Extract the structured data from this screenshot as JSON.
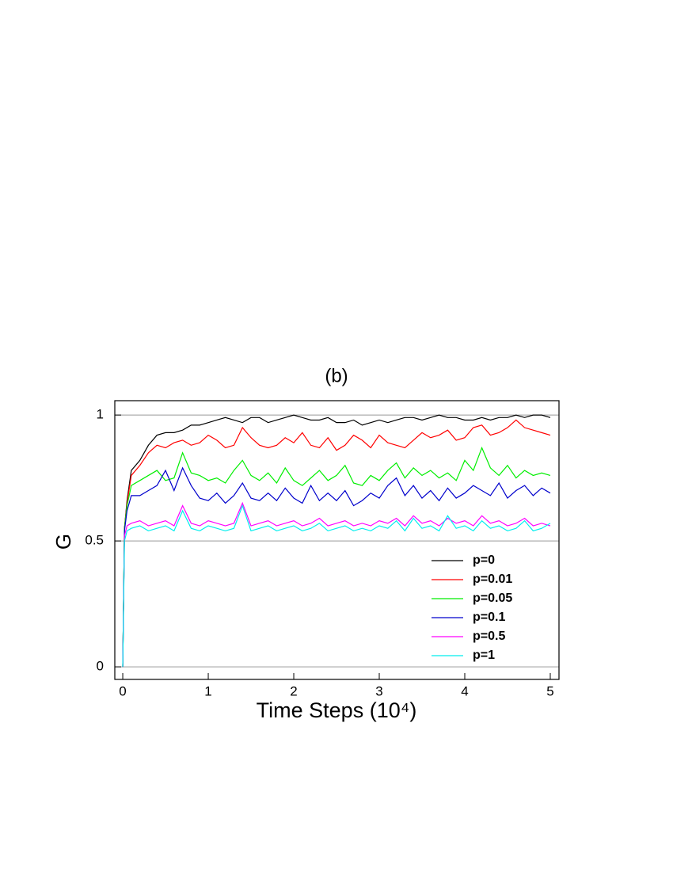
{
  "chart_data": {
    "type": "line",
    "title": "(b)",
    "xlabel": "Time Steps (10⁴)",
    "ylabel": "G",
    "x": [
      0,
      0.02,
      0.05,
      0.1,
      0.2,
      0.3,
      0.4,
      0.5,
      0.6,
      0.7,
      0.8,
      0.9,
      1.0,
      1.1,
      1.2,
      1.3,
      1.4,
      1.5,
      1.6,
      1.7,
      1.8,
      1.9,
      2.0,
      2.1,
      2.2,
      2.3,
      2.4,
      2.5,
      2.6,
      2.7,
      2.8,
      2.9,
      3.0,
      3.1,
      3.2,
      3.3,
      3.4,
      3.5,
      3.6,
      3.7,
      3.8,
      3.9,
      4.0,
      4.1,
      4.2,
      4.3,
      4.4,
      4.5,
      4.6,
      4.7,
      4.8,
      4.9,
      5.0
    ],
    "series": [
      {
        "name": "p=0",
        "color": "#000000",
        "values": [
          0,
          0.55,
          0.66,
          0.78,
          0.82,
          0.88,
          0.92,
          0.93,
          0.93,
          0.94,
          0.96,
          0.96,
          0.97,
          0.98,
          0.99,
          0.98,
          0.97,
          0.99,
          0.99,
          0.97,
          0.98,
          0.99,
          1.0,
          0.99,
          0.98,
          0.98,
          0.99,
          0.97,
          0.97,
          0.98,
          0.96,
          0.97,
          0.98,
          0.97,
          0.98,
          0.99,
          0.99,
          0.98,
          0.99,
          1.0,
          0.99,
          0.99,
          0.98,
          0.98,
          0.99,
          0.98,
          0.99,
          0.99,
          1.0,
          0.99,
          1.0,
          1.0,
          0.99
        ]
      },
      {
        "name": "p=0.01",
        "color": "#ff0000",
        "values": [
          0,
          0.55,
          0.65,
          0.76,
          0.8,
          0.85,
          0.88,
          0.87,
          0.89,
          0.9,
          0.88,
          0.89,
          0.92,
          0.9,
          0.87,
          0.88,
          0.95,
          0.91,
          0.88,
          0.87,
          0.88,
          0.91,
          0.89,
          0.93,
          0.88,
          0.87,
          0.91,
          0.86,
          0.88,
          0.92,
          0.9,
          0.87,
          0.92,
          0.89,
          0.88,
          0.87,
          0.9,
          0.93,
          0.91,
          0.92,
          0.94,
          0.9,
          0.91,
          0.95,
          0.96,
          0.92,
          0.93,
          0.95,
          0.98,
          0.95,
          0.94,
          0.93,
          0.92
        ]
      },
      {
        "name": "p=0.05",
        "color": "#00ee00",
        "values": [
          0,
          0.55,
          0.64,
          0.72,
          0.74,
          0.76,
          0.78,
          0.74,
          0.75,
          0.85,
          0.77,
          0.76,
          0.74,
          0.75,
          0.73,
          0.78,
          0.82,
          0.76,
          0.74,
          0.77,
          0.73,
          0.79,
          0.74,
          0.72,
          0.75,
          0.78,
          0.74,
          0.76,
          0.8,
          0.73,
          0.72,
          0.76,
          0.74,
          0.78,
          0.81,
          0.75,
          0.79,
          0.76,
          0.78,
          0.75,
          0.77,
          0.74,
          0.82,
          0.78,
          0.87,
          0.79,
          0.76,
          0.8,
          0.75,
          0.78,
          0.76,
          0.77,
          0.76
        ]
      },
      {
        "name": "p=0.1",
        "color": "#0000cc",
        "values": [
          0,
          0.54,
          0.62,
          0.68,
          0.68,
          0.7,
          0.72,
          0.78,
          0.7,
          0.79,
          0.72,
          0.67,
          0.66,
          0.69,
          0.65,
          0.68,
          0.73,
          0.67,
          0.66,
          0.69,
          0.66,
          0.71,
          0.67,
          0.65,
          0.72,
          0.66,
          0.69,
          0.66,
          0.7,
          0.64,
          0.66,
          0.69,
          0.67,
          0.72,
          0.75,
          0.68,
          0.72,
          0.67,
          0.7,
          0.66,
          0.71,
          0.67,
          0.69,
          0.72,
          0.7,
          0.68,
          0.73,
          0.67,
          0.7,
          0.72,
          0.68,
          0.71,
          0.69
        ]
      },
      {
        "name": "p=0.5",
        "color": "#ff00ff",
        "values": [
          0,
          0.52,
          0.56,
          0.57,
          0.58,
          0.56,
          0.57,
          0.58,
          0.56,
          0.64,
          0.57,
          0.56,
          0.58,
          0.57,
          0.56,
          0.57,
          0.65,
          0.56,
          0.57,
          0.58,
          0.56,
          0.57,
          0.58,
          0.56,
          0.57,
          0.59,
          0.56,
          0.57,
          0.58,
          0.56,
          0.57,
          0.56,
          0.58,
          0.57,
          0.59,
          0.56,
          0.6,
          0.57,
          0.58,
          0.56,
          0.59,
          0.57,
          0.58,
          0.56,
          0.6,
          0.57,
          0.58,
          0.56,
          0.57,
          0.59,
          0.56,
          0.57,
          0.56
        ]
      },
      {
        "name": "p=1",
        "color": "#00eeee",
        "values": [
          0,
          0.5,
          0.54,
          0.55,
          0.56,
          0.54,
          0.55,
          0.56,
          0.54,
          0.62,
          0.55,
          0.54,
          0.56,
          0.55,
          0.54,
          0.55,
          0.64,
          0.54,
          0.55,
          0.56,
          0.54,
          0.55,
          0.56,
          0.54,
          0.55,
          0.57,
          0.54,
          0.55,
          0.56,
          0.54,
          0.55,
          0.54,
          0.56,
          0.55,
          0.58,
          0.54,
          0.59,
          0.55,
          0.56,
          0.54,
          0.6,
          0.55,
          0.56,
          0.54,
          0.58,
          0.55,
          0.56,
          0.54,
          0.55,
          0.58,
          0.54,
          0.55,
          0.57
        ]
      }
    ],
    "xlim": [
      -0.093,
      5.102
    ],
    "xticks": [
      0,
      1,
      2,
      3,
      4,
      5
    ],
    "ylim": [
      -0.05,
      1.057
    ],
    "yticks": [
      0,
      0.5,
      1
    ],
    "grid": "y",
    "legend_position": "right"
  }
}
